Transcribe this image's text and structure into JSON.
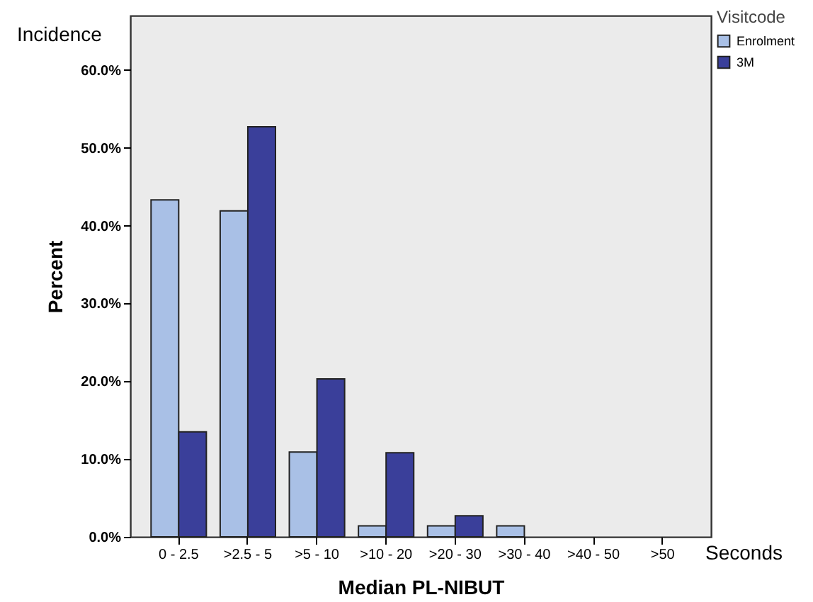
{
  "chart_data": {
    "type": "bar",
    "xlabel": "Median PL-NIBUT",
    "ylabel": "Percent",
    "legend_title": "Visitcode",
    "annotations": [
      "Incidence",
      "Seconds"
    ],
    "categories": [
      "0 - 2.5",
      ">2.5 - 5",
      ">5 - 10",
      ">10 - 20",
      ">20 - 30",
      ">30 - 40",
      ">40 - 50",
      ">50"
    ],
    "series": [
      {
        "name": "Enrolment",
        "color": "#a9c0e6",
        "values": [
          43.3,
          41.9,
          10.9,
          1.4,
          1.4,
          1.4,
          0,
          0
        ]
      },
      {
        "name": "3M",
        "color": "#3a3f9a",
        "values": [
          13.5,
          52.7,
          20.3,
          10.8,
          2.7,
          0,
          0,
          0
        ]
      }
    ],
    "ylim": [
      0,
      67
    ],
    "yticks": [
      {
        "value": 0,
        "label": "0.0%"
      },
      {
        "value": 10,
        "label": "10.0%"
      },
      {
        "value": 20,
        "label": "20.0%"
      },
      {
        "value": 30,
        "label": "30.0%"
      },
      {
        "value": 40,
        "label": "40.0%"
      },
      {
        "value": 50,
        "label": "50.0%"
      },
      {
        "value": 60,
        "label": "60.0%"
      }
    ],
    "grid": false,
    "legend": "top right"
  }
}
